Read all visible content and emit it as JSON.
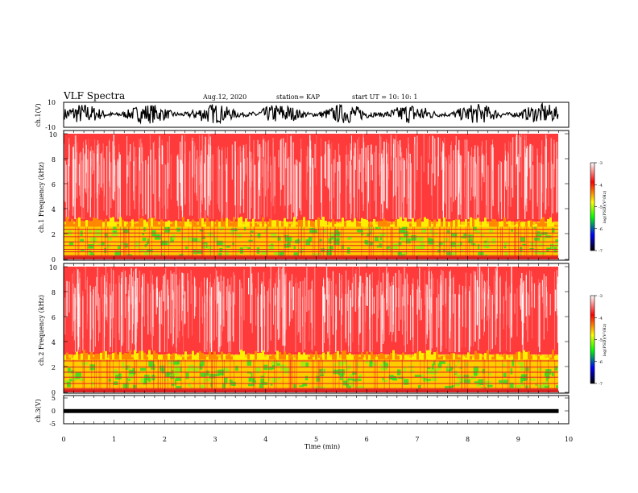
{
  "header": {
    "title": "VLF Spectra",
    "date": "Aug.12, 2020",
    "station": "station= KAP",
    "start": "start  UT =   10: 10: 1"
  },
  "colorbar": {
    "label": "log(PSD)(V²/Hz)",
    "ticks": [
      "-3",
      "-4",
      "-5",
      "-6",
      "-7"
    ],
    "colors": [
      "#ffffff",
      "#ff0000",
      "#ffff00",
      "#00ff00",
      "#0000ff",
      "#000000"
    ]
  },
  "chart_data": [
    {
      "type": "line",
      "name": "ch.1 waveform",
      "ylabel": "ch.1(V)",
      "ylim": [
        -10,
        10
      ],
      "yticks": [
        "10",
        "-10"
      ],
      "xlim": [
        0,
        10
      ],
      "amplitude_approx": [
        -7,
        9
      ]
    },
    {
      "type": "heatmap",
      "name": "ch.1 spectrogram",
      "ylabel": "ch.1  Frequency (kHz)",
      "ylim": [
        0,
        10
      ],
      "yticks": [
        "0",
        "2",
        "4",
        "6",
        "8",
        "10"
      ],
      "xlim": [
        0,
        9.85
      ],
      "zlim": [
        -7,
        -3
      ],
      "bands": [
        {
          "from_khz": 3.0,
          "to_khz": 10.0,
          "log_psd": -3.5
        },
        {
          "from_khz": 0.0,
          "to_khz": 3.0,
          "log_psd": -4.8
        }
      ],
      "lines_khz": [
        0.3,
        0.6,
        0.8,
        1.1,
        1.4,
        1.8,
        2.1,
        2.4
      ]
    },
    {
      "type": "heatmap",
      "name": "ch.2 spectrogram",
      "ylabel": "ch.2  Frequency (kHz)",
      "ylim": [
        0,
        10
      ],
      "yticks": [
        "0",
        "2",
        "4",
        "6",
        "8",
        "10"
      ],
      "xlim": [
        0,
        9.85
      ],
      "zlim": [
        -7,
        -3
      ],
      "bands": [
        {
          "from_khz": 3.0,
          "to_khz": 10.0,
          "log_psd": -3.5
        },
        {
          "from_khz": 0.0,
          "to_khz": 3.0,
          "log_psd": -4.9
        }
      ],
      "lines_khz": [
        0.3,
        0.7,
        1.2,
        1.6,
        2.0,
        2.5
      ]
    },
    {
      "type": "line",
      "name": "ch.3 waveform",
      "ylabel": "ch.3(V)",
      "ylim": [
        -5,
        5
      ],
      "yticks": [
        "5",
        "0",
        "-5"
      ],
      "xlim": [
        0,
        10
      ],
      "amplitude_approx": [
        -1.2,
        0.2
      ]
    }
  ],
  "xaxis": {
    "label": "Time  (min)",
    "ticks": [
      "0",
      "1",
      "2",
      "3",
      "4",
      "5",
      "6",
      "7",
      "8",
      "9",
      "10"
    ]
  }
}
